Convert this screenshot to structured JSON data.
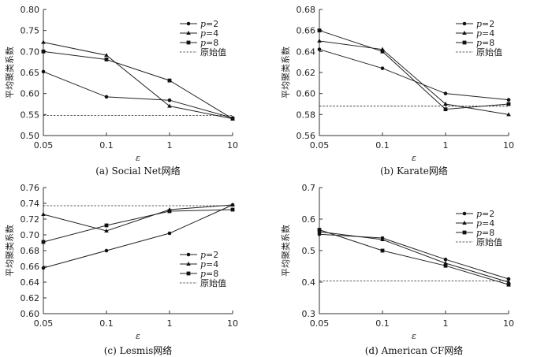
{
  "chart_data": [
    {
      "type": "line",
      "caption": "(a) Social Net网络",
      "xlabel": "ε",
      "ylabel": "平均聚类系数",
      "x_ticks": [
        "0.05",
        "0.1",
        "1",
        "10"
      ],
      "y_ticks": [
        "0.50",
        "0.55",
        "0.60",
        "0.65",
        "0.70",
        "0.75",
        "0.80"
      ],
      "ylim": [
        0.5,
        0.8
      ],
      "legend_position": "top-right",
      "series": [
        {
          "name": "p=2",
          "marker": "circle",
          "values": [
            0.652,
            0.592,
            0.584,
            0.542
          ]
        },
        {
          "name": "p=4",
          "marker": "triangle",
          "values": [
            0.722,
            0.691,
            0.57,
            0.54
          ]
        },
        {
          "name": "p=8",
          "marker": "square",
          "values": [
            0.7,
            0.681,
            0.631,
            0.54
          ]
        }
      ],
      "reference": {
        "name": "原始值",
        "value": 0.548
      }
    },
    {
      "type": "line",
      "caption": "(b) Karate网络",
      "xlabel": "ε",
      "ylabel": "平均聚类系数",
      "x_ticks": [
        "0.05",
        "0.1",
        "1",
        "10"
      ],
      "y_ticks": [
        "0.56",
        "0.58",
        "0.60",
        "0.62",
        "0.64",
        "0.66",
        "0.68"
      ],
      "ylim": [
        0.56,
        0.68
      ],
      "legend_position": "top-right",
      "series": [
        {
          "name": "p=2",
          "marker": "circle",
          "values": [
            0.642,
            0.624,
            0.6,
            0.594
          ]
        },
        {
          "name": "p=4",
          "marker": "triangle",
          "values": [
            0.65,
            0.642,
            0.59,
            0.58
          ]
        },
        {
          "name": "p=8",
          "marker": "square",
          "values": [
            0.66,
            0.64,
            0.585,
            0.59
          ]
        }
      ],
      "reference": {
        "name": "原始值",
        "value": 0.588
      }
    },
    {
      "type": "line",
      "caption": "(c) Lesmis网络",
      "xlabel": "ε",
      "ylabel": "平均聚类系数",
      "x_ticks": [
        "0.05",
        "0.1",
        "1",
        "10"
      ],
      "y_ticks": [
        "0.60",
        "0.62",
        "0.64",
        "0.66",
        "0.68",
        "0.70",
        "0.72",
        "0.74",
        "0.76"
      ],
      "ylim": [
        0.6,
        0.76
      ],
      "legend_position": "center-right",
      "series": [
        {
          "name": "p=2",
          "marker": "circle",
          "values": [
            0.658,
            0.68,
            0.702,
            0.738
          ]
        },
        {
          "name": "p=4",
          "marker": "triangle",
          "values": [
            0.726,
            0.705,
            0.732,
            0.738
          ]
        },
        {
          "name": "p=8",
          "marker": "square",
          "values": [
            0.691,
            0.712,
            0.73,
            0.732
          ]
        }
      ],
      "reference": {
        "name": "原始值",
        "value": 0.737
      }
    },
    {
      "type": "line",
      "caption": "(d) American CF网络",
      "xlabel": "ε",
      "ylabel": "平均聚类系数",
      "x_ticks": [
        "0.05",
        "0.1",
        "1",
        "10"
      ],
      "y_ticks": [
        "0.3",
        "0.4",
        "0.5",
        "0.6",
        "0.7"
      ],
      "ylim": [
        0.3,
        0.7
      ],
      "legend_position": "top-right",
      "series": [
        {
          "name": "p=2",
          "marker": "circle",
          "values": [
            0.552,
            0.54,
            0.472,
            0.41
          ]
        },
        {
          "name": "p=4",
          "marker": "triangle",
          "values": [
            0.56,
            0.535,
            0.46,
            0.4
          ]
        },
        {
          "name": "p=8",
          "marker": "square",
          "values": [
            0.566,
            0.5,
            0.452,
            0.392
          ]
        }
      ],
      "reference": {
        "name": "原始值",
        "value": 0.404
      }
    }
  ]
}
